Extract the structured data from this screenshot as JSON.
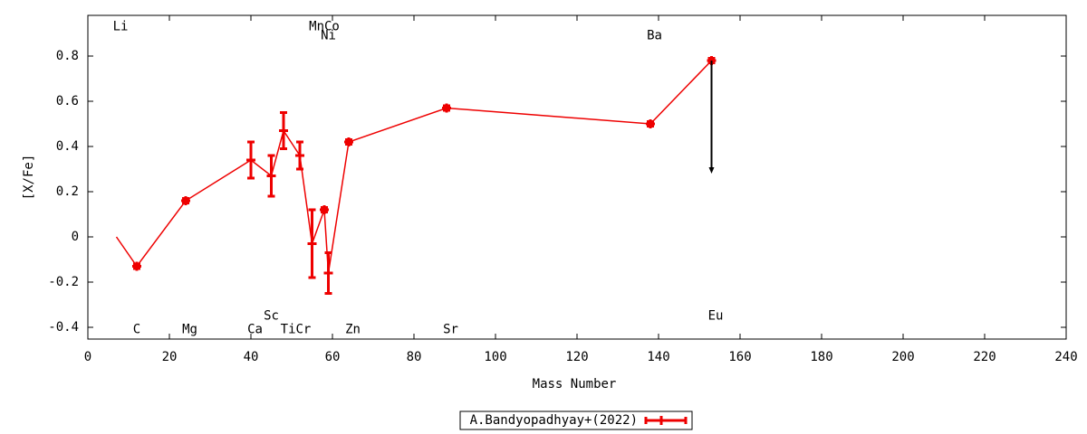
{
  "chart_data": {
    "type": "errorline",
    "xlabel": "Mass Number",
    "ylabel": "[X/Fe]",
    "xlim": [
      0,
      240
    ],
    "xticks": [
      0,
      20,
      40,
      60,
      80,
      100,
      120,
      140,
      160,
      180,
      200,
      220,
      240
    ],
    "ylim": [
      -0.452,
      0.98
    ],
    "yticks": [
      -0.4,
      -0.2,
      0,
      0.2,
      0.4,
      0.6,
      0.8
    ],
    "series": [
      {
        "name": "A.Bandyopadhyay+(2022)",
        "color": "#ee0000",
        "x": [
          7,
          12,
          24,
          40,
          45,
          48,
          52,
          55,
          58,
          59,
          64,
          88,
          138,
          153
        ],
        "values": [
          0,
          -0.13,
          0.16,
          0.34,
          0.27,
          0.47,
          0.36,
          -0.03,
          0.12,
          -0.16,
          0.42,
          0.57,
          0.5,
          0.78
        ],
        "errors": [
          null,
          0.01,
          0.01,
          0.08,
          0.09,
          0.08,
          0.06,
          0.15,
          0.01,
          0.09,
          0.01,
          0.01,
          0.01,
          0.01
        ]
      }
    ],
    "arrows": [
      {
        "x": 153,
        "from": 0.78,
        "to": 0.28
      }
    ],
    "annotations": [
      {
        "text": "Li",
        "x": 8,
        "y": 0.93
      },
      {
        "text": "MnCo",
        "x": 58,
        "y": 0.93
      },
      {
        "text": "Ni",
        "x": 59,
        "y": 0.89
      },
      {
        "text": "Ba",
        "x": 139,
        "y": 0.89
      },
      {
        "text": "C",
        "x": 12,
        "y": -0.41
      },
      {
        "text": "Mg",
        "x": 25,
        "y": -0.41
      },
      {
        "text": "Ca",
        "x": 41,
        "y": -0.41
      },
      {
        "text": "Sc",
        "x": 45,
        "y": -0.35
      },
      {
        "text": "TiCr",
        "x": 51,
        "y": -0.41
      },
      {
        "text": "Zn",
        "x": 65,
        "y": -0.41
      },
      {
        "text": "Sr",
        "x": 89,
        "y": -0.41
      },
      {
        "text": "Eu",
        "x": 154,
        "y": -0.35
      }
    ]
  }
}
